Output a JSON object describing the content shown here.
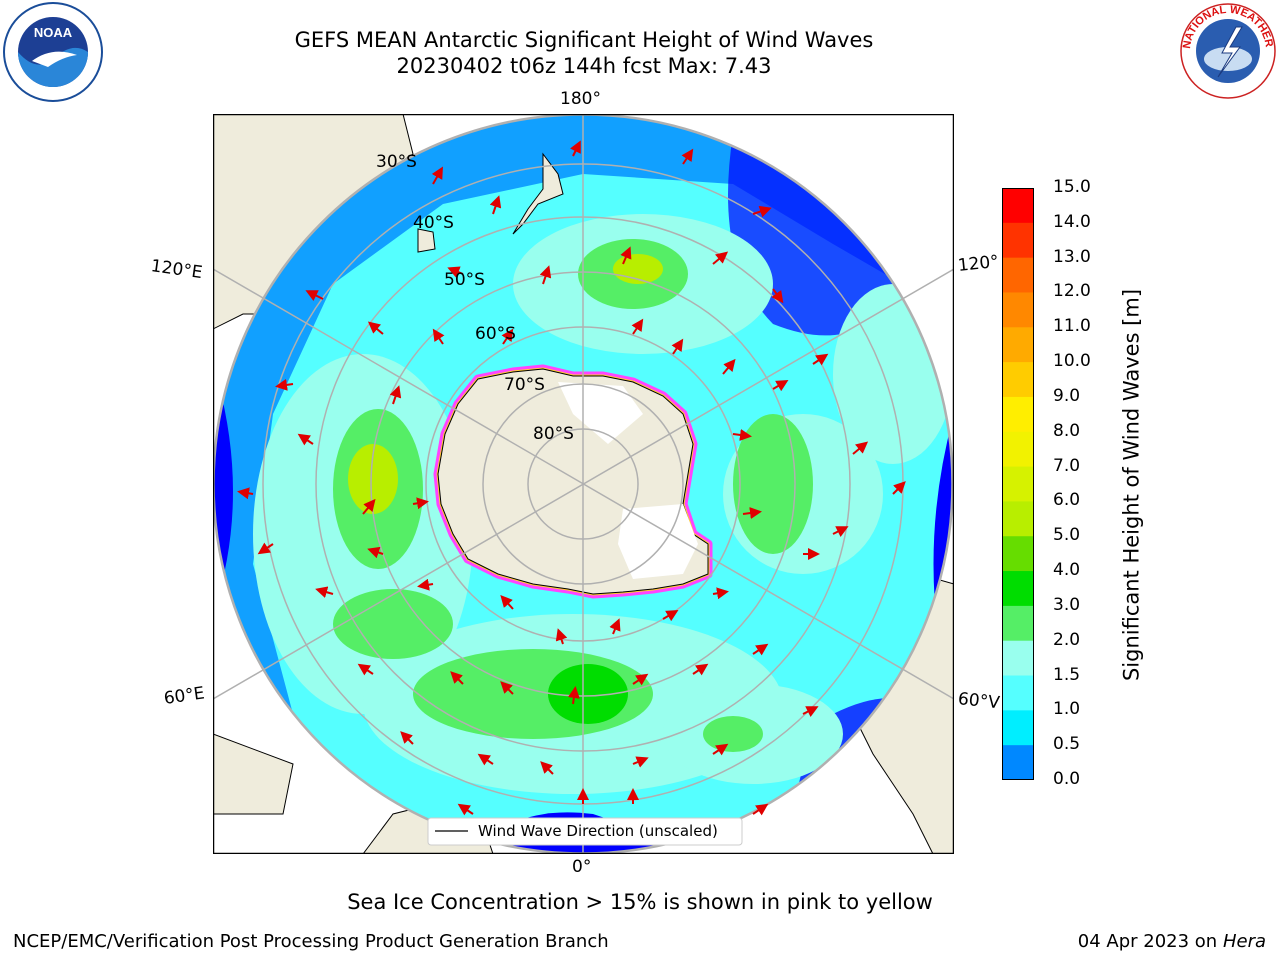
{
  "title": {
    "line1": "GEFS MEAN Antarctic Significant Height of Wind Waves",
    "line2": "20230402 t06z 144h fcst   Max: 7.43"
  },
  "logos": {
    "left": "NOAA",
    "right": "NATIONAL WEATHER SERVICE"
  },
  "map": {
    "longitude_labels": {
      "top": "180°",
      "bottom": "0°",
      "upper_left": "120°E",
      "lower_left": "60°E",
      "upper_right": "120°",
      "lower_right": "60°V"
    },
    "latitude_labels": [
      "30°S",
      "40°S",
      "50°S",
      "60°S",
      "70°S",
      "80°S"
    ],
    "legend_label": "Wind Wave Direction (unscaled)"
  },
  "colorbar": {
    "title": "Significant Height of Wind Waves [m]",
    "ticks": [
      "15.0",
      "14.0",
      "13.0",
      "12.0",
      "11.0",
      "10.0",
      "9.0",
      "8.0",
      "7.0",
      "6.0",
      "5.0",
      "4.0",
      "3.0",
      "2.0",
      "1.5",
      "1.0",
      "0.5",
      "0.0"
    ],
    "colors": [
      "#ff0000",
      "#ff3300",
      "#ff6600",
      "#ff8800",
      "#ffaa00",
      "#ffcc00",
      "#ffee00",
      "#f2f200",
      "#d6f200",
      "#b8ee00",
      "#66dd00",
      "#00dd00",
      "#55ee66",
      "#99ffee",
      "#55ffff",
      "#00eeff",
      "#0088ff",
      "#0000ff"
    ]
  },
  "footer": {
    "note": "Sea Ice Concentration > 15% is shown in pink to yellow",
    "credit_left": "NCEP/EMC/Verification Post Processing Product Generation Branch",
    "credit_right_date": "04 Apr 2023 on",
    "credit_right_host": "Hera"
  }
}
